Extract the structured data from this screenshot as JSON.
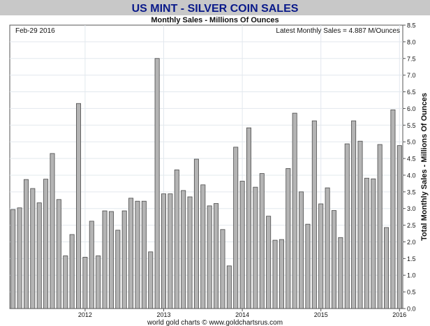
{
  "chart_data": {
    "type": "bar",
    "title": "US MINT - SILVER COIN SALES",
    "subtitle": "Monthly Sales - Millions Of Ounces",
    "date_label": "Feb-29  2016",
    "latest_label": "Latest Monthly Sales = 4.887 M/Ounces",
    "ylabel": "Total Monthly Sales - Millions Of Ounces",
    "footer": "world gold charts © www.goldchartsrus.com",
    "ylim": [
      0,
      8.5
    ],
    "y_ticks": [
      "0.0",
      "0.5",
      "1.0",
      "1.5",
      "2.0",
      "2.5",
      "3.0",
      "3.5",
      "4.0",
      "4.5",
      "5.0",
      "5.5",
      "6.0",
      "6.5",
      "7.0",
      "7.5",
      "8.0",
      "8.5"
    ],
    "x_tick_labels": [
      "2012",
      "2013",
      "2014",
      "2015",
      "2016"
    ],
    "x_tick_positions": [
      12,
      24,
      36,
      48,
      60
    ],
    "grid": true,
    "colors": {
      "title_band": "#c8c8c8",
      "title_text": "#0a1a8a",
      "bar_fill": "#b4b4b4",
      "bar_stroke": "#4a4a4a",
      "grid": "#e2e8ee",
      "frame": "#555555"
    },
    "categories": [
      "2011-03",
      "2011-04",
      "2011-05",
      "2011-06",
      "2011-07",
      "2011-08",
      "2011-09",
      "2011-10",
      "2011-11",
      "2011-12",
      "2012-01",
      "2012-02",
      "2012-03",
      "2012-04",
      "2012-05",
      "2012-06",
      "2012-07",
      "2012-08",
      "2012-09",
      "2012-10",
      "2012-11",
      "2012-12",
      "2013-01",
      "2013-02",
      "2013-03",
      "2013-04",
      "2013-05",
      "2013-06",
      "2013-07",
      "2013-08",
      "2013-09",
      "2013-10",
      "2013-11",
      "2013-12",
      "2014-01",
      "2014-02",
      "2014-03",
      "2014-04",
      "2014-05",
      "2014-06",
      "2014-07",
      "2014-08",
      "2014-09",
      "2014-10",
      "2014-11",
      "2014-12",
      "2015-01",
      "2015-02",
      "2015-03",
      "2015-04",
      "2015-05",
      "2015-06",
      "2015-07",
      "2015-08",
      "2015-09",
      "2015-10",
      "2015-11",
      "2015-12",
      "2016-01",
      "2016-02"
    ],
    "values": [
      2.97,
      3.02,
      3.87,
      3.6,
      3.17,
      3.88,
      4.65,
      3.27,
      1.58,
      2.22,
      6.15,
      1.54,
      2.62,
      1.58,
      2.93,
      2.91,
      2.35,
      2.93,
      3.31,
      3.22,
      3.22,
      1.7,
      7.5,
      3.44,
      3.44,
      4.16,
      3.54,
      3.35,
      4.48,
      3.71,
      3.08,
      3.15,
      2.37,
      1.28,
      4.84,
      3.82,
      5.42,
      3.64,
      4.05,
      2.77,
      2.05,
      2.07,
      4.2,
      5.86,
      3.5,
      2.53,
      5.63,
      3.14,
      3.62,
      2.94,
      2.13,
      4.94,
      5.63,
      5.02,
      3.91,
      3.89,
      4.92,
      2.43,
      5.96,
      4.887
    ]
  }
}
